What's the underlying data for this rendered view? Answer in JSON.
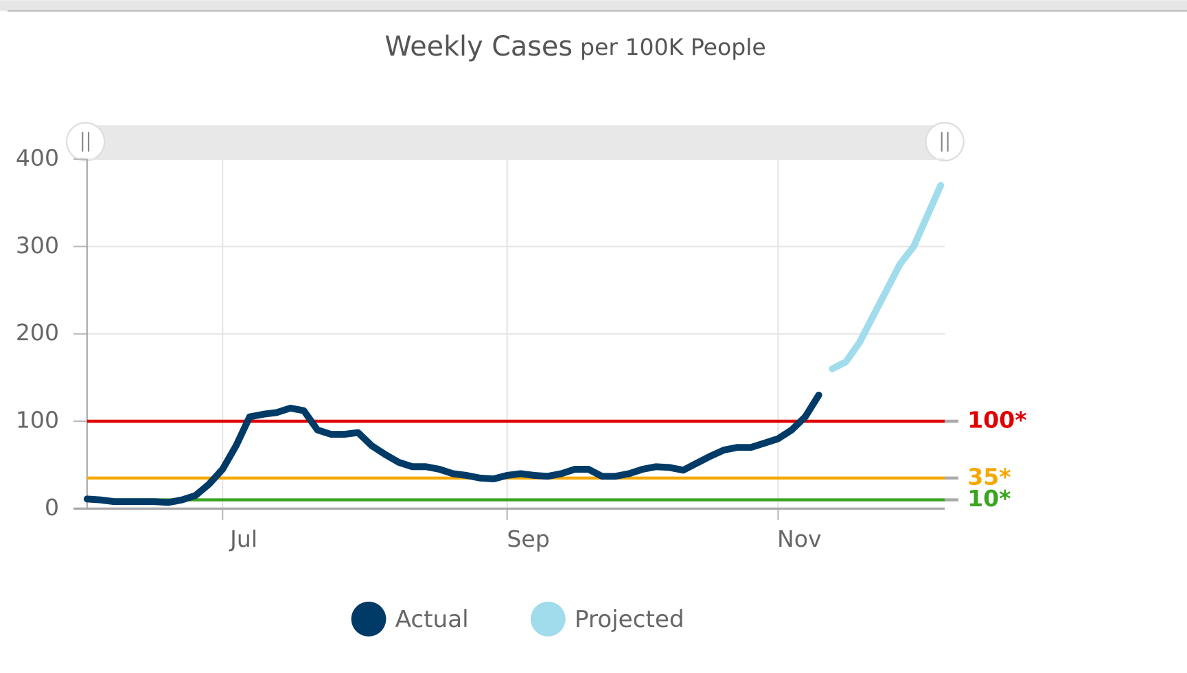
{
  "chart_data": {
    "type": "line",
    "title": "Weekly Cases",
    "subtitle": "per 100K People",
    "categories": [
      null,
      null,
      null,
      null,
      null,
      null,
      null,
      null,
      null,
      null,
      "Jul",
      null,
      null,
      null,
      null,
      null,
      null,
      null,
      null,
      null,
      null,
      null,
      null,
      null,
      null,
      null,
      null,
      null,
      null,
      null,
      null,
      "Sep",
      null,
      null,
      null,
      null,
      null,
      null,
      null,
      null,
      null,
      null,
      null,
      null,
      null,
      null,
      null,
      null,
      null,
      null,
      null,
      "Nov",
      null,
      null,
      null,
      null,
      null,
      null,
      null,
      null,
      null,
      null,
      null,
      null
    ],
    "series": [
      {
        "name": "Actual",
        "color": "#003a66",
        "values": [
          11,
          10,
          8,
          8,
          8,
          8,
          7,
          10,
          15,
          28,
          45,
          72,
          105,
          108,
          110,
          115,
          112,
          90,
          85,
          85,
          87,
          72,
          62,
          53,
          48,
          48,
          45,
          40,
          38,
          35,
          34,
          38,
          40,
          38,
          37,
          40,
          45,
          45,
          37,
          37,
          40,
          45,
          48,
          47,
          44,
          52,
          60,
          67,
          70,
          70,
          75,
          80,
          90,
          105,
          130,
          null,
          null,
          null,
          null,
          null,
          null,
          null,
          null,
          null
        ]
      },
      {
        "name": "Projected",
        "color": "#a0dcec",
        "values": [
          null,
          null,
          null,
          null,
          null,
          null,
          null,
          null,
          null,
          null,
          null,
          null,
          null,
          null,
          null,
          null,
          null,
          null,
          null,
          null,
          null,
          null,
          null,
          null,
          null,
          null,
          null,
          null,
          null,
          null,
          null,
          null,
          null,
          null,
          null,
          null,
          null,
          null,
          null,
          null,
          null,
          null,
          null,
          null,
          null,
          null,
          null,
          null,
          null,
          null,
          null,
          null,
          null,
          null,
          null,
          160,
          168,
          190,
          220,
          250,
          280,
          300,
          335,
          370
        ]
      }
    ],
    "thresholds": [
      {
        "value": 100,
        "label": "100*",
        "color": "#e00000"
      },
      {
        "value": 35,
        "label": "35*",
        "color": "#f5a800"
      },
      {
        "value": 10,
        "label": "10*",
        "color": "#3aa520"
      }
    ],
    "ylim": [
      0,
      400
    ],
    "yticks": [
      0,
      100,
      200,
      300,
      400
    ],
    "grid": true
  }
}
